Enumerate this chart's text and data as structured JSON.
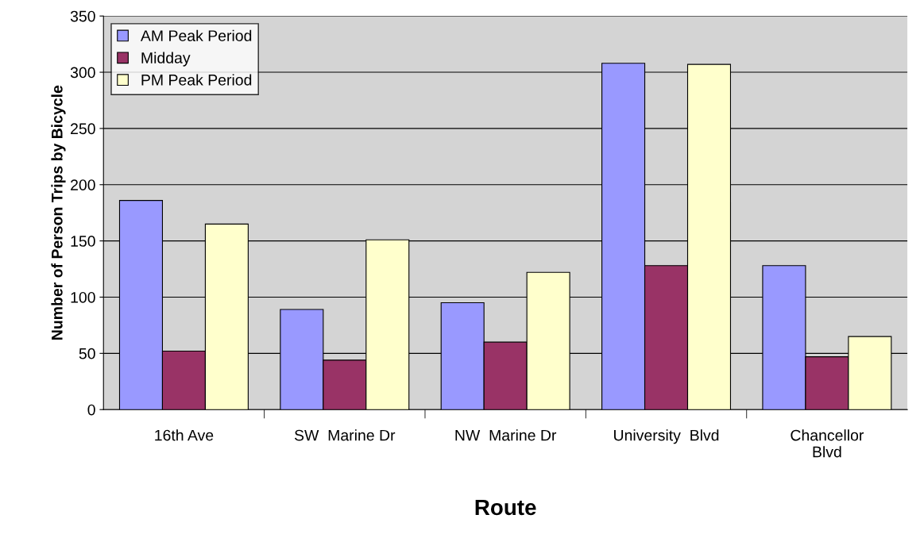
{
  "chart_data": {
    "type": "bar",
    "xlabel": "Route",
    "ylabel": "Number of Person Trips by Bicycle",
    "categories": [
      "16th Ave",
      "SW  Marine Dr",
      "NW  Marine Dr",
      "University  Blvd",
      "Chancellor\nBlvd"
    ],
    "series": [
      {
        "name": "AM Peak Period",
        "color": "#9999ff",
        "values": [
          186,
          89,
          95,
          308,
          128
        ]
      },
      {
        "name": "Midday",
        "color": "#993366",
        "values": [
          52,
          44,
          60,
          128,
          47
        ]
      },
      {
        "name": "PM Peak Period",
        "color": "#ffffcc",
        "values": [
          165,
          151,
          122,
          307,
          65
        ]
      }
    ],
    "ylim": [
      0,
      350
    ],
    "yticks": [
      0,
      50,
      100,
      150,
      200,
      250,
      300,
      350
    ],
    "grid": "y",
    "legend": "top left"
  }
}
